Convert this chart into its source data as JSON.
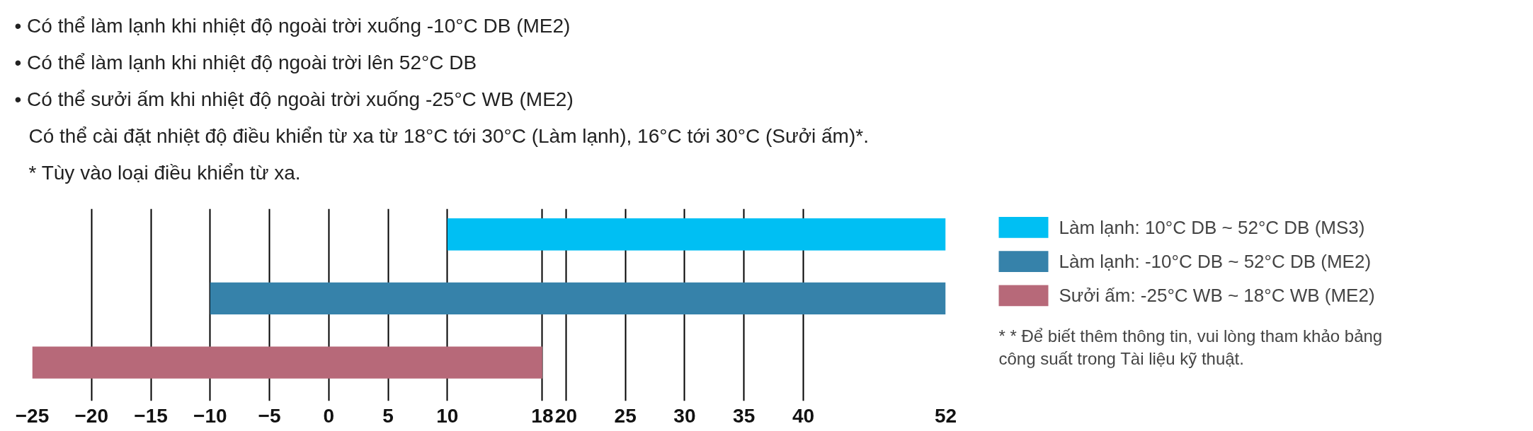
{
  "chart_data": {
    "type": "bar",
    "orientation": "horizontal",
    "annotations": [
      "• Có thể làm lạnh khi nhiệt độ ngoài trời xuống -10°C DB (ME2)",
      "• Có thể làm lạnh khi nhiệt độ ngoài trời lên 52°C DB",
      "• Có thể sưởi ấm khi nhiệt độ ngoài trời xuống -25°C WB (ME2)",
      "Có thể cài đặt nhiệt độ điều khiển từ xa từ 18°C tới 30°C (Làm lạnh), 16°C tới 30°C (Sưởi ấm)*.",
      "* Tùy vào loại điều khiển từ xa.",
      "* * Để biết thêm thông tin, vui lòng tham khảo bảng công suất trong Tài liệu kỹ thuật."
    ],
    "categories": [
      null,
      null,
      null
    ],
    "series": [
      {
        "name": "Làm lạnh: 10°C DB ~ 52°C DB (MS3)",
        "color": "#00bff3",
        "base": [
          10,
          null,
          null
        ],
        "values": [
          42,
          null,
          null
        ]
      },
      {
        "name": "Làm lạnh: -10°C DB ~ 52°C DB (ME2)",
        "color": "#3682aa",
        "base": [
          null,
          -10,
          null
        ],
        "values": [
          null,
          62,
          null
        ]
      },
      {
        "name": "Sưởi ấm: -25°C WB ~ 18°C WB (ME2)",
        "color": "#b76979",
        "base": [
          null,
          null,
          -25
        ],
        "values": [
          null,
          null,
          43
        ]
      }
    ],
    "xlim": [
      -25,
      52
    ],
    "xticks": [
      -25,
      -20,
      -15,
      -10,
      -5,
      0,
      5,
      10,
      18,
      20,
      25,
      30,
      35,
      40,
      52
    ],
    "grid": "x",
    "legend": "right"
  }
}
